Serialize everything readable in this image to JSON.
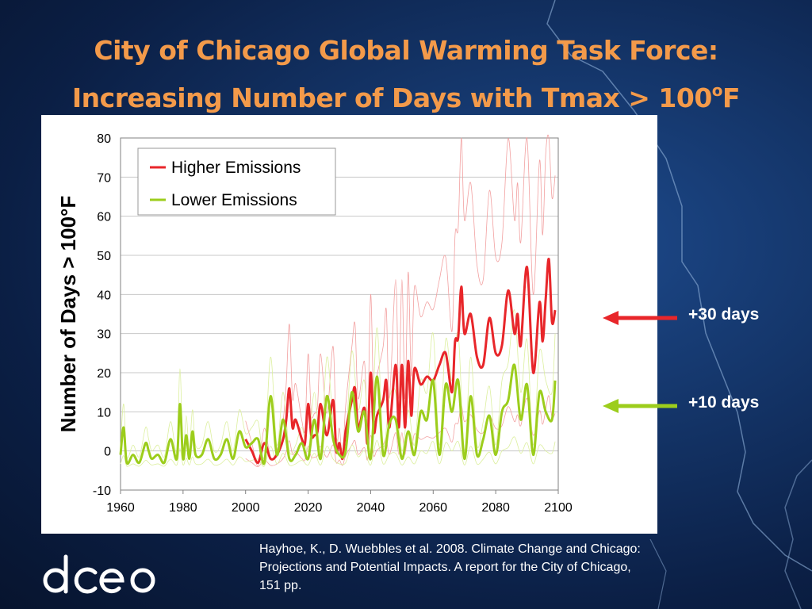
{
  "slide": {
    "title_line1": "City of Chicago Global Warming Task Force:",
    "title_line2_main": "Increasing Number of Days with Tmax > 100",
    "title_line2_sup": "o",
    "title_line2_end": "F",
    "citation": "Hayhoe, K., D. Wuebbles et al. 2008. Climate Change and Chicago: Projections and Potential Impacts. A report for the City of Chicago, 151 pp.",
    "logo_text": "dceo"
  },
  "annotations": [
    {
      "label": "+30 days",
      "color": "#e8262a"
    },
    {
      "label": "+10 days",
      "color": "#9ccd1c"
    }
  ],
  "colors": {
    "higher": "#e8262a",
    "lower": "#9ccd1c",
    "higher_light": "#f2a0a0",
    "lower_light": "#dcef9e",
    "title": "#f39a4a"
  },
  "chart_data": {
    "type": "line",
    "ylabel": "Number of Days > 100°F",
    "xlim": [
      1960,
      2100
    ],
    "ylim": [
      -10,
      80
    ],
    "xticks": [
      1960,
      1980,
      2000,
      2020,
      2040,
      2060,
      2080,
      2100
    ],
    "yticks": [
      -10,
      0,
      10,
      20,
      30,
      40,
      50,
      60,
      70,
      80
    ],
    "grid": true,
    "legend_position": "top-left",
    "series": [
      {
        "name": "Higher Emissions",
        "x": [
          2000,
          2002,
          2004,
          2006,
          2008,
          2010,
          2012,
          2013,
          2014,
          2015,
          2016,
          2018,
          2019,
          2020,
          2021,
          2022,
          2023,
          2024,
          2026,
          2028,
          2029,
          2030,
          2031,
          2032,
          2034,
          2035,
          2036,
          2038,
          2039,
          2040,
          2041,
          2042,
          2044,
          2045,
          2046,
          2048,
          2049,
          2050,
          2051,
          2052,
          2053,
          2054,
          2056,
          2058,
          2060,
          2062,
          2064,
          2066,
          2067,
          2068,
          2069,
          2070,
          2072,
          2074,
          2076,
          2078,
          2080,
          2082,
          2084,
          2086,
          2087,
          2088,
          2090,
          2092,
          2094,
          2095,
          2096,
          2097,
          2098,
          2099
        ],
        "y": [
          3,
          0,
          -3,
          2,
          -2,
          -1,
          3,
          8,
          16,
          6,
          8,
          3,
          2,
          12,
          4,
          4,
          5,
          12,
          4,
          13,
          0,
          2,
          -2,
          5,
          13,
          16,
          6,
          11,
          2,
          20,
          5,
          9,
          13,
          18,
          6,
          22,
          6,
          22,
          6,
          23,
          9,
          21,
          17,
          19,
          18,
          22,
          25,
          15,
          28,
          29,
          42,
          30,
          35,
          24,
          22,
          34,
          25,
          27,
          41,
          30,
          35,
          27,
          47,
          20,
          38,
          28,
          39,
          49,
          33,
          36
        ]
      },
      {
        "name": "Lower Emissions",
        "x": [
          1960,
          1961,
          1962,
          1964,
          1966,
          1968,
          1969,
          1970,
          1972,
          1974,
          1976,
          1978,
          1979,
          1980,
          1981,
          1982,
          1983,
          1984,
          1986,
          1988,
          1990,
          1992,
          1994,
          1996,
          1998,
          2000,
          2002,
          2004,
          2006,
          2008,
          2010,
          2012,
          2014,
          2016,
          2018,
          2020,
          2022,
          2024,
          2026,
          2028,
          2030,
          2032,
          2034,
          2036,
          2038,
          2040,
          2042,
          2044,
          2046,
          2048,
          2050,
          2052,
          2054,
          2056,
          2058,
          2060,
          2062,
          2064,
          2066,
          2068,
          2070,
          2072,
          2074,
          2076,
          2078,
          2080,
          2082,
          2084,
          2086,
          2088,
          2090,
          2092,
          2094,
          2096,
          2098,
          2099
        ],
        "y": [
          -1,
          6,
          -3,
          -1,
          -3,
          2,
          0,
          -2,
          -1,
          -3,
          3,
          -2,
          12,
          -2,
          4,
          -2,
          5,
          -1,
          -1,
          3,
          -2,
          -1,
          3,
          -2,
          5,
          1,
          2,
          3,
          -3,
          14,
          -1,
          8,
          -2,
          -1,
          2,
          -2,
          8,
          -2,
          14,
          3,
          -1,
          0,
          15,
          5,
          10,
          -2,
          19,
          -1,
          7,
          8,
          -2,
          5,
          -1,
          10,
          8,
          18,
          -1,
          17,
          10,
          18,
          -2,
          14,
          -1,
          3,
          9,
          -1,
          10,
          13,
          22,
          8,
          17,
          -1,
          15,
          10,
          8,
          18
        ]
      }
    ]
  }
}
